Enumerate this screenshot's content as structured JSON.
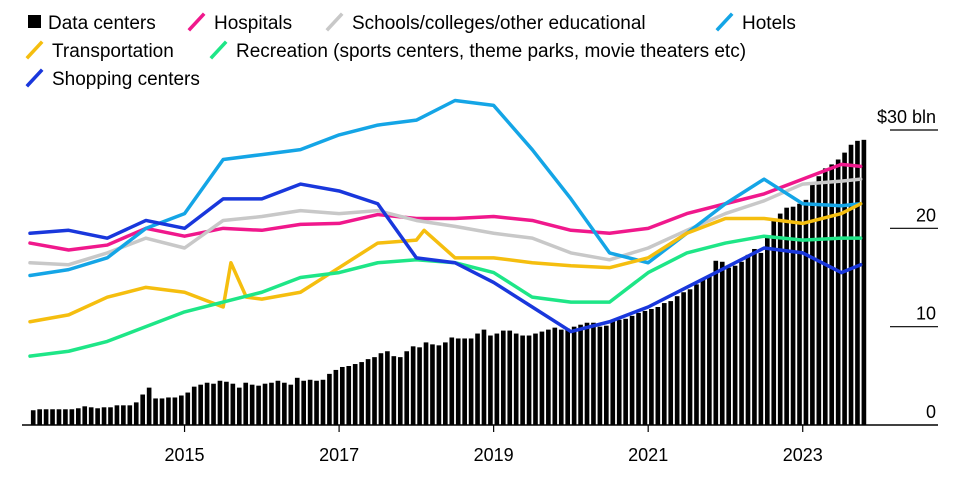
{
  "chart_data": {
    "type": "bar+line",
    "unit_label": "$30 bln",
    "y_ticks": [
      {
        "value": 0,
        "label": "0"
      },
      {
        "value": 10,
        "label": "10"
      },
      {
        "value": 20,
        "label": "20"
      },
      {
        "value": 30,
        "label": "$30 bln"
      }
    ],
    "x_ticks": [
      {
        "value": 2015,
        "label": "2015"
      },
      {
        "value": 2017,
        "label": "2017"
      },
      {
        "value": 2019,
        "label": "2019"
      },
      {
        "value": 2021,
        "label": "2021"
      },
      {
        "value": 2023,
        "label": "2023"
      }
    ],
    "xlim": [
      2013.0,
      2024.0
    ],
    "ylim": [
      0,
      30
    ],
    "grid": false,
    "legend_position": "top-left",
    "bars": {
      "name": "Data centers",
      "color": "#000000",
      "x_start": 2013.0,
      "step_years": 0.0833333,
      "values": [
        1.5,
        1.6,
        1.6,
        1.6,
        1.6,
        1.6,
        1.6,
        1.7,
        1.9,
        1.8,
        1.7,
        1.8,
        1.8,
        2.0,
        2.0,
        2.0,
        2.3,
        3.1,
        3.8,
        2.7,
        2.7,
        2.8,
        2.8,
        3.0,
        3.3,
        3.9,
        4.1,
        4.3,
        4.2,
        4.5,
        4.4,
        4.2,
        3.8,
        4.3,
        4.1,
        4.0,
        4.2,
        4.3,
        4.5,
        4.3,
        4.1,
        4.8,
        4.5,
        4.6,
        4.5,
        4.6,
        5.2,
        5.6,
        5.9,
        6.0,
        6.2,
        6.4,
        6.7,
        6.9,
        7.3,
        7.5,
        7.0,
        6.9,
        7.5,
        8.0,
        7.9,
        8.4,
        8.2,
        8.1,
        8.4,
        8.9,
        8.8,
        8.8,
        8.8,
        9.3,
        9.7,
        9.1,
        9.3,
        9.6,
        9.6,
        9.3,
        9.1,
        9.1,
        9.3,
        9.5,
        9.7,
        9.9,
        9.7,
        9.8,
        10.0,
        10.2,
        10.4,
        10.4,
        10.0,
        10.1,
        10.6,
        10.7,
        10.8,
        11.1,
        11.4,
        11.6,
        11.8,
        12.0,
        12.4,
        12.6,
        13.1,
        13.5,
        13.8,
        14.3,
        14.8,
        15.2,
        16.7,
        16.6,
        16.0,
        16.2,
        16.6,
        17.3,
        17.9,
        17.5,
        19.3,
        21.0,
        21.5,
        22.1,
        22.2,
        22.5,
        22.9,
        24.5,
        25.3,
        26.1,
        26.5,
        27.0,
        27.7,
        28.5,
        28.9,
        29.0
      ]
    },
    "series": [
      {
        "name": "Hospitals",
        "color": "#f0188c",
        "values": [
          [
            2013.0,
            18.5
          ],
          [
            2013.5,
            17.8
          ],
          [
            2014.0,
            18.3
          ],
          [
            2014.5,
            20.0
          ],
          [
            2015.0,
            19.2
          ],
          [
            2015.5,
            20.0
          ],
          [
            2016.0,
            19.8
          ],
          [
            2016.5,
            20.4
          ],
          [
            2017.0,
            20.5
          ],
          [
            2017.5,
            21.4
          ],
          [
            2018.0,
            21.0
          ],
          [
            2018.5,
            21.0
          ],
          [
            2019.0,
            21.2
          ],
          [
            2019.5,
            20.8
          ],
          [
            2020.0,
            19.8
          ],
          [
            2020.5,
            19.5
          ],
          [
            2021.0,
            20.0
          ],
          [
            2021.5,
            21.5
          ],
          [
            2022.0,
            22.5
          ],
          [
            2022.5,
            23.5
          ],
          [
            2023.0,
            25.0
          ],
          [
            2023.5,
            26.5
          ],
          [
            2023.75,
            26.3
          ]
        ]
      },
      {
        "name": "Schools/colleges/other educational",
        "color": "#c8c8c8",
        "values": [
          [
            2013.0,
            16.5
          ],
          [
            2013.5,
            16.3
          ],
          [
            2014.0,
            17.5
          ],
          [
            2014.5,
            19.0
          ],
          [
            2015.0,
            18.0
          ],
          [
            2015.5,
            20.8
          ],
          [
            2016.0,
            21.2
          ],
          [
            2016.5,
            21.8
          ],
          [
            2017.0,
            21.5
          ],
          [
            2017.5,
            21.8
          ],
          [
            2018.0,
            20.8
          ],
          [
            2018.5,
            20.2
          ],
          [
            2019.0,
            19.5
          ],
          [
            2019.5,
            19.0
          ],
          [
            2020.0,
            17.5
          ],
          [
            2020.5,
            16.8
          ],
          [
            2021.0,
            18.0
          ],
          [
            2021.5,
            19.8
          ],
          [
            2022.0,
            21.5
          ],
          [
            2022.5,
            22.8
          ],
          [
            2023.0,
            24.5
          ],
          [
            2023.5,
            24.8
          ],
          [
            2023.75,
            25.0
          ]
        ]
      },
      {
        "name": "Hotels",
        "color": "#14a5e6",
        "values": [
          [
            2013.0,
            15.2
          ],
          [
            2013.5,
            15.8
          ],
          [
            2014.0,
            17.0
          ],
          [
            2014.5,
            20.0
          ],
          [
            2015.0,
            21.5
          ],
          [
            2015.5,
            27.0
          ],
          [
            2016.0,
            27.5
          ],
          [
            2016.5,
            28.0
          ],
          [
            2017.0,
            29.5
          ],
          [
            2017.5,
            30.5
          ],
          [
            2018.0,
            31.0
          ],
          [
            2018.5,
            33.0
          ],
          [
            2019.0,
            32.5
          ],
          [
            2019.5,
            28.0
          ],
          [
            2020.0,
            23.0
          ],
          [
            2020.5,
            17.5
          ],
          [
            2021.0,
            16.5
          ],
          [
            2021.5,
            19.5
          ],
          [
            2022.0,
            22.5
          ],
          [
            2022.5,
            25.0
          ],
          [
            2023.0,
            22.5
          ],
          [
            2023.5,
            22.3
          ],
          [
            2023.75,
            22.5
          ]
        ]
      },
      {
        "name": "Transportation",
        "color": "#f5be0f",
        "values": [
          [
            2013.0,
            10.5
          ],
          [
            2013.5,
            11.2
          ],
          [
            2014.0,
            13.0
          ],
          [
            2014.5,
            14.0
          ],
          [
            2015.0,
            13.5
          ],
          [
            2015.5,
            12.0
          ],
          [
            2015.6,
            16.5
          ],
          [
            2015.8,
            13.0
          ],
          [
            2016.0,
            12.8
          ],
          [
            2016.5,
            13.5
          ],
          [
            2017.0,
            16.0
          ],
          [
            2017.5,
            18.5
          ],
          [
            2018.0,
            18.8
          ],
          [
            2018.1,
            19.8
          ],
          [
            2018.5,
            17.0
          ],
          [
            2019.0,
            17.0
          ],
          [
            2019.5,
            16.5
          ],
          [
            2020.0,
            16.2
          ],
          [
            2020.5,
            16.0
          ],
          [
            2021.0,
            17.0
          ],
          [
            2021.5,
            19.5
          ],
          [
            2022.0,
            21.0
          ],
          [
            2022.5,
            21.0
          ],
          [
            2023.0,
            20.5
          ],
          [
            2023.5,
            21.5
          ],
          [
            2023.75,
            22.5
          ]
        ]
      },
      {
        "name": "Recreation (sports centers, theme parks, movie theaters etc)",
        "color": "#1ee687",
        "values": [
          [
            2013.0,
            7.0
          ],
          [
            2013.5,
            7.5
          ],
          [
            2014.0,
            8.5
          ],
          [
            2014.5,
            10.0
          ],
          [
            2015.0,
            11.5
          ],
          [
            2015.5,
            12.5
          ],
          [
            2016.0,
            13.5
          ],
          [
            2016.5,
            15.0
          ],
          [
            2017.0,
            15.5
          ],
          [
            2017.5,
            16.5
          ],
          [
            2018.0,
            16.8
          ],
          [
            2018.5,
            16.5
          ],
          [
            2019.0,
            15.5
          ],
          [
            2019.5,
            13.0
          ],
          [
            2020.0,
            12.5
          ],
          [
            2020.5,
            12.5
          ],
          [
            2021.0,
            15.5
          ],
          [
            2021.5,
            17.5
          ],
          [
            2022.0,
            18.5
          ],
          [
            2022.5,
            19.2
          ],
          [
            2023.0,
            18.8
          ],
          [
            2023.5,
            19.0
          ],
          [
            2023.75,
            19.0
          ]
        ]
      },
      {
        "name": "Shopping centers",
        "color": "#1937dc",
        "values": [
          [
            2013.0,
            19.5
          ],
          [
            2013.5,
            19.8
          ],
          [
            2014.0,
            19.0
          ],
          [
            2014.5,
            20.8
          ],
          [
            2015.0,
            20.0
          ],
          [
            2015.5,
            23.0
          ],
          [
            2016.0,
            23.0
          ],
          [
            2016.5,
            24.5
          ],
          [
            2017.0,
            23.8
          ],
          [
            2017.5,
            22.5
          ],
          [
            2018.0,
            17.0
          ],
          [
            2018.5,
            16.5
          ],
          [
            2019.0,
            14.5
          ],
          [
            2019.5,
            12.0
          ],
          [
            2020.0,
            9.5
          ],
          [
            2020.5,
            10.5
          ],
          [
            2021.0,
            12.0
          ],
          [
            2021.5,
            14.0
          ],
          [
            2022.0,
            16.0
          ],
          [
            2022.5,
            18.0
          ],
          [
            2023.0,
            17.5
          ],
          [
            2023.5,
            15.5
          ],
          [
            2023.75,
            16.3
          ]
        ]
      }
    ]
  },
  "legend": [
    {
      "label": "Data centers",
      "color": "#000000",
      "marker": "square"
    },
    {
      "label": "Hospitals",
      "color": "#f0188c",
      "marker": "slash"
    },
    {
      "label": "Schools/colleges/other educational",
      "color": "#c8c8c8",
      "marker": "slash"
    },
    {
      "label": "Hotels",
      "color": "#14a5e6",
      "marker": "slash"
    },
    {
      "label": "Transportation",
      "color": "#f5be0f",
      "marker": "slash"
    },
    {
      "label": "Recreation (sports centers, theme parks, movie theaters etc)",
      "color": "#1ee687",
      "marker": "slash"
    },
    {
      "label": "Shopping centers",
      "color": "#1937dc",
      "marker": "slash"
    }
  ]
}
